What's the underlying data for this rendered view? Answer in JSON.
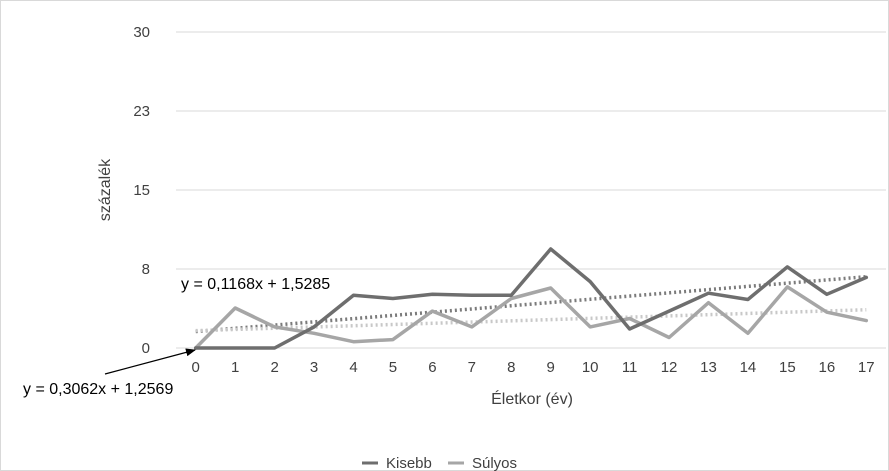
{
  "chart_data": {
    "type": "line",
    "title": "",
    "xlabel": "Életkor (év)",
    "ylabel": "százalék",
    "categories": [
      "0",
      "1",
      "2",
      "3",
      "4",
      "5",
      "6",
      "7",
      "8",
      "9",
      "10",
      "11",
      "12",
      "13",
      "14",
      "15",
      "16",
      "17"
    ],
    "ylim": [
      0,
      30
    ],
    "yticks": [
      "0",
      "8",
      "15",
      "23",
      "30"
    ],
    "ytick_values": [
      0,
      7.5,
      15,
      22.5,
      30
    ],
    "grid": true,
    "legend_position": "bottom",
    "series": [
      {
        "name": "Kisebb",
        "color": "#6e6e6e",
        "values": [
          0,
          0,
          0,
          2.0,
          5.0,
          4.7,
          5.1,
          5.0,
          5.0,
          9.4,
          6.3,
          1.8,
          3.5,
          5.2,
          4.6,
          7.7,
          5.1,
          6.7
        ],
        "trend": {
          "slope": 0.3062,
          "intercept": 1.2569,
          "color": "#7b7b7b"
        }
      },
      {
        "name": "Súlyos",
        "color": "#a6a6a6",
        "values": [
          0,
          3.8,
          2.0,
          1.4,
          0.6,
          0.8,
          3.5,
          2.0,
          4.7,
          5.7,
          2.0,
          2.8,
          1.0,
          4.3,
          1.4,
          5.8,
          3.4,
          2.6
        ],
        "trend": {
          "slope": 0.1168,
          "intercept": 1.5285,
          "color": "#c8c8c8"
        }
      }
    ],
    "annotations": [
      {
        "text": "y = 0,1168x + 1,5285"
      },
      {
        "text": "y = 0,3062x + 1,2569"
      }
    ]
  }
}
